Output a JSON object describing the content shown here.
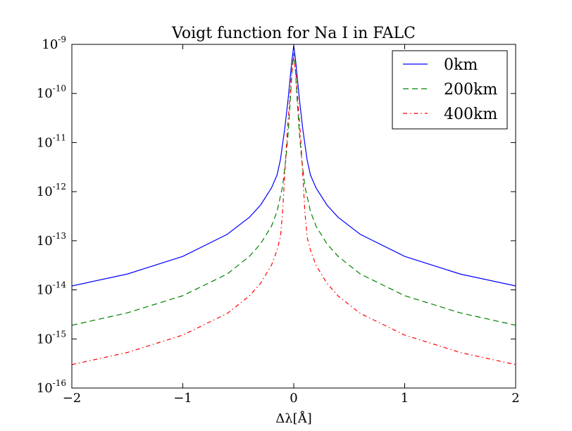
{
  "chart_data": {
    "type": "line",
    "title": "Voigt function for Na I in FALC",
    "xlabel": "Δλ[Å]",
    "ylabel": "",
    "xlim": [
      -2,
      2
    ],
    "ylim": [
      1e-16,
      1e-09
    ],
    "yscale": "log",
    "grid": false,
    "legend_position": "top-right",
    "x_ticks": [
      {
        "value": -2,
        "label": "−2"
      },
      {
        "value": -1,
        "label": "−1"
      },
      {
        "value": 0,
        "label": "0"
      },
      {
        "value": 1,
        "label": "1"
      },
      {
        "value": 2,
        "label": "2"
      }
    ],
    "y_ticks": [
      {
        "exponent": -9,
        "base": "10",
        "sup": "-9"
      },
      {
        "exponent": -10,
        "base": "10",
        "sup": "-10"
      },
      {
        "exponent": -11,
        "base": "10",
        "sup": "-11"
      },
      {
        "exponent": -12,
        "base": "10",
        "sup": "-12"
      },
      {
        "exponent": -13,
        "base": "10",
        "sup": "-13"
      },
      {
        "exponent": -14,
        "base": "10",
        "sup": "-14"
      },
      {
        "exponent": -15,
        "base": "10",
        "sup": "-15"
      },
      {
        "exponent": -16,
        "base": "10",
        "sup": "-16"
      }
    ],
    "series": [
      {
        "name": "0km",
        "color": "#0000ff",
        "style": "solid",
        "x": [
          -2,
          -1.5,
          -1,
          -0.6,
          -0.4,
          -0.3,
          -0.2,
          -0.15,
          -0.12,
          -0.08,
          -0.05,
          -0.02,
          0,
          0.02,
          0.05,
          0.08,
          0.12,
          0.15,
          0.2,
          0.3,
          0.4,
          0.6,
          1,
          1.5,
          2
        ],
        "y": [
          1.2e-14,
          2.1e-14,
          4.8e-14,
          1.35e-13,
          3e-13,
          5.3e-13,
          1.2e-12,
          2.2e-12,
          4.5e-12,
          2e-11,
          8e-11,
          4e-10,
          9.5e-10,
          4e-10,
          8e-11,
          2e-11,
          4.5e-12,
          2.2e-12,
          1.2e-12,
          5.3e-13,
          3e-13,
          1.35e-13,
          4.8e-14,
          2.1e-14,
          1.2e-14
        ]
      },
      {
        "name": "200km",
        "color": "#008000",
        "style": "dashed",
        "x": [
          -2,
          -1.5,
          -1,
          -0.6,
          -0.4,
          -0.3,
          -0.2,
          -0.15,
          -0.1,
          -0.07,
          -0.05,
          -0.03,
          -0.015,
          0,
          0.015,
          0.03,
          0.05,
          0.07,
          0.1,
          0.15,
          0.2,
          0.3,
          0.4,
          0.6,
          1,
          1.5,
          2
        ],
        "y": [
          1.9e-15,
          3.4e-15,
          7.6e-15,
          2.1e-14,
          4.8e-14,
          8.6e-14,
          2e-13,
          4e-13,
          1.3e-12,
          5e-12,
          1.6e-11,
          8e-11,
          3e-10,
          6.6e-10,
          3e-10,
          8e-11,
          1.6e-11,
          5e-12,
          1.3e-12,
          4e-13,
          2e-13,
          8.6e-14,
          4.8e-14,
          2.1e-14,
          7.6e-15,
          3.4e-15,
          1.9e-15
        ]
      },
      {
        "name": "400km",
        "color": "#ff0000",
        "style": "dashdot",
        "x": [
          -2,
          -1.5,
          -1,
          -0.6,
          -0.4,
          -0.3,
          -0.2,
          -0.15,
          -0.12,
          -0.1,
          -0.08,
          -0.06,
          -0.04,
          -0.02,
          0,
          0.02,
          0.04,
          0.06,
          0.08,
          0.1,
          0.12,
          0.15,
          0.2,
          0.3,
          0.4,
          0.6,
          1,
          1.5,
          2
        ],
        "y": [
          3e-16,
          5.3e-16,
          1.2e-15,
          3.3e-15,
          7.5e-15,
          1.35e-14,
          3.2e-14,
          6.5e-14,
          1.2e-13,
          4e-13,
          2.5e-12,
          1.5e-11,
          6e-11,
          2.5e-10,
          5.6e-10,
          2.5e-10,
          6e-11,
          1.5e-11,
          2.5e-12,
          4e-13,
          1.2e-13,
          6.5e-14,
          3.2e-14,
          1.35e-14,
          7.5e-15,
          3.3e-15,
          1.2e-15,
          5.3e-16,
          3e-16
        ]
      }
    ]
  }
}
